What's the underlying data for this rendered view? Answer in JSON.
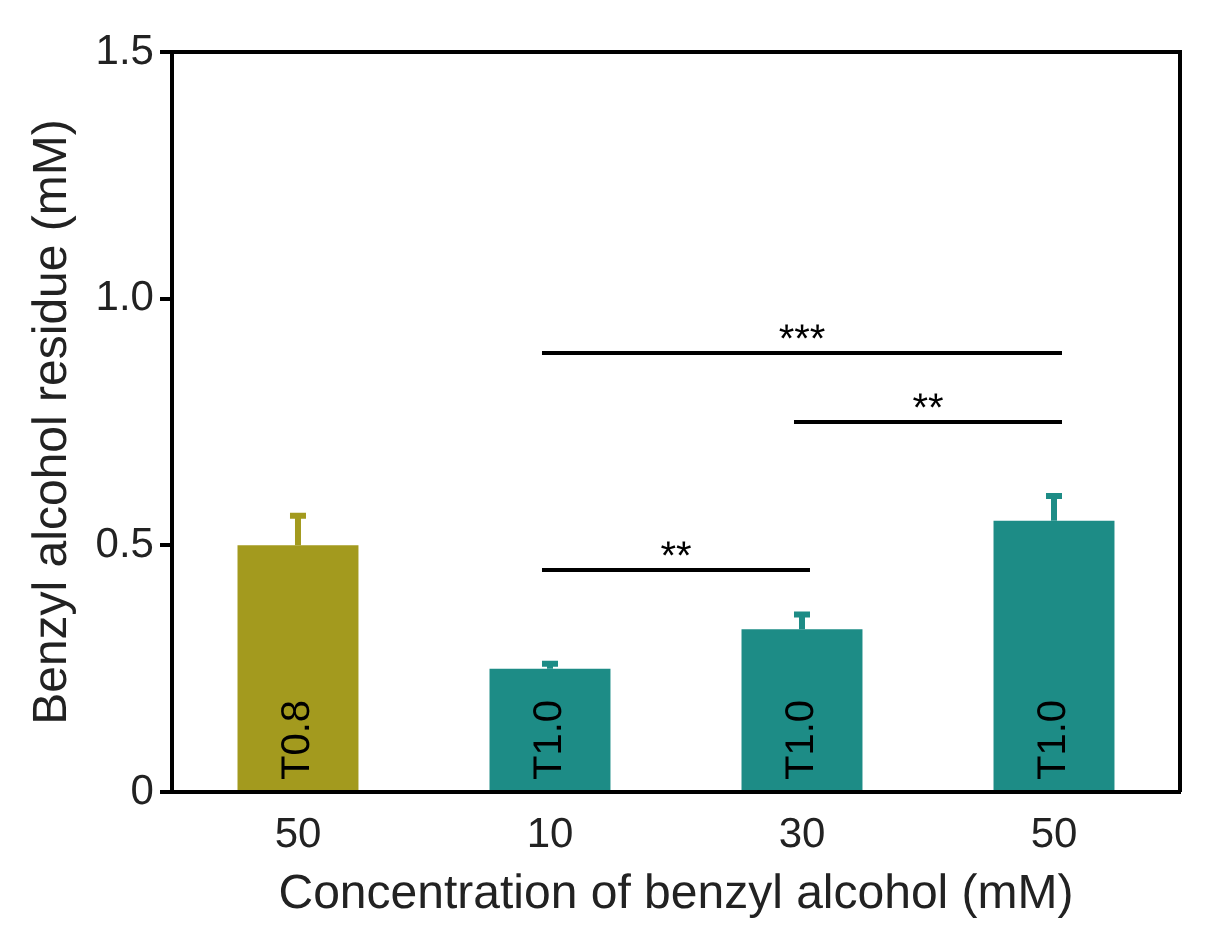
{
  "chart_data": {
    "type": "bar",
    "xlabel": "Concentration of benzyl alcohol (mM)",
    "ylabel": "Benzyl alcohol residue (mM)",
    "categories": [
      "50",
      "10",
      "30",
      "50"
    ],
    "values": [
      0.5,
      0.25,
      0.33,
      0.55
    ],
    "colors": [
      "#a39a1e",
      "#1d8c86",
      "#1d8c86",
      "#1d8c86"
    ],
    "errors": [
      [
        0.5,
        0.56
      ],
      [
        0.25,
        0.26
      ],
      [
        0.33,
        0.36
      ],
      [
        0.55,
        0.6
      ]
    ],
    "ylim": [
      0,
      1.5
    ],
    "yticks": [
      0,
      {
        "value": 0.5,
        "label": "0.5"
      },
      {
        "value": 1,
        "label": "1.0"
      },
      {
        "value": 1.5,
        "label": "1.5"
      }
    ],
    "grid": false,
    "legend": false,
    "annotations": [
      "T0.8",
      "T1.0",
      "T1.0",
      "T1.0",
      "**",
      "***",
      "**"
    ]
  }
}
